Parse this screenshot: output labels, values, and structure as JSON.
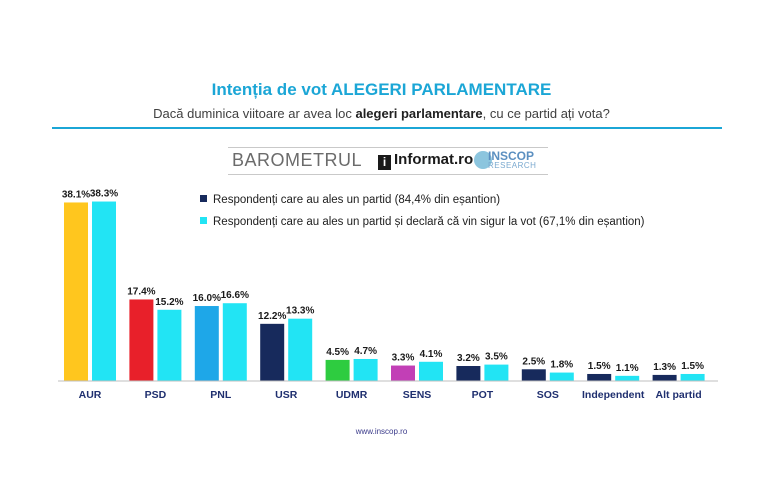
{
  "header": {
    "title_prefix": "Intenția de vot ",
    "title_bold": "ALEGERI PARLAMENTARE",
    "subtitle_pre": "Dacă duminica viitoare ar avea loc ",
    "subtitle_bold": "alegeri parlamentare",
    "subtitle_post": ", cu ce partid ați vota?"
  },
  "logo": {
    "barometer": "BAROMETRUL",
    "informat": "Informat.ro",
    "informat_mark": "i",
    "inscop": "INSCOP",
    "research": "RESEARCH"
  },
  "footer": {
    "url": "www.inscop.ro"
  },
  "chart_data": {
    "type": "bar",
    "categories": [
      "AUR",
      "PSD",
      "PNL",
      "USR",
      "UDMR",
      "SENS",
      "POT",
      "SOS",
      "Independent",
      "Alt partid"
    ],
    "series": [
      {
        "name": "Respondenți care au ales un partid (84,4% din eșantion)",
        "values": [
          38.1,
          17.4,
          16.0,
          12.2,
          4.5,
          3.3,
          3.2,
          2.5,
          1.5,
          1.3
        ],
        "labels": [
          "38.1%",
          "17.4%",
          "16.0%",
          "12.2%",
          "4.5%",
          "3.3%",
          "3.2%",
          "2.5%",
          "1.5%",
          "1.3%"
        ],
        "colors": [
          "#ffc61e",
          "#e8202a",
          "#1ea7e8",
          "#172a5c",
          "#2ecc40",
          "#c23fb6",
          "#172a5c",
          "#172a5c",
          "#172a5c",
          "#172a5c"
        ],
        "legend_color": "#172a5c"
      },
      {
        "name": "Respondenți care au ales un partid și declară că vin sigur la vot (67,1% din eșantion)",
        "values": [
          38.3,
          15.2,
          16.6,
          13.3,
          4.7,
          4.1,
          3.5,
          1.8,
          1.1,
          1.5
        ],
        "labels": [
          "38.3%",
          "15.2%",
          "16.6%",
          "13.3%",
          "4.7%",
          "4.1%",
          "3.5%",
          "1.8%",
          "1.1%",
          "1.5%"
        ],
        "color": "#22e4f4",
        "legend_color": "#22e4f4"
      }
    ],
    "ylim": [
      0,
      40
    ],
    "grid": false,
    "legend_position": "top-right"
  }
}
